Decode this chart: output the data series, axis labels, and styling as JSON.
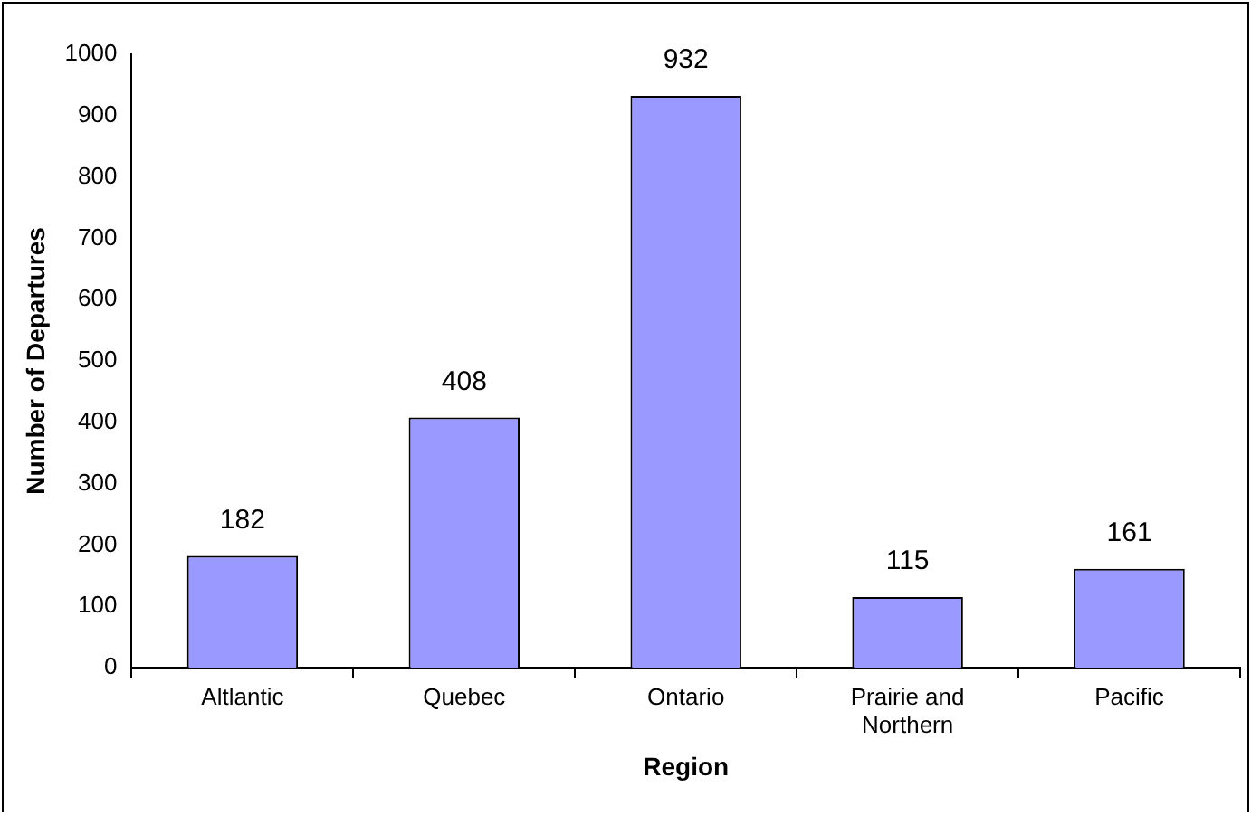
{
  "chart_data": {
    "type": "bar",
    "xlabel": "Region",
    "ylabel": "Number of Departures",
    "categories": [
      "Altlantic",
      "Quebec",
      "Ontario",
      "Prairie and Northern",
      "Pacific"
    ],
    "values": [
      182,
      408,
      932,
      115,
      161
    ],
    "color": "#9999ff",
    "ylim": [
      0,
      1000
    ],
    "yticks": [
      0,
      100,
      200,
      300,
      400,
      500,
      600,
      700,
      800,
      900,
      1000
    ],
    "data_labels": true
  }
}
